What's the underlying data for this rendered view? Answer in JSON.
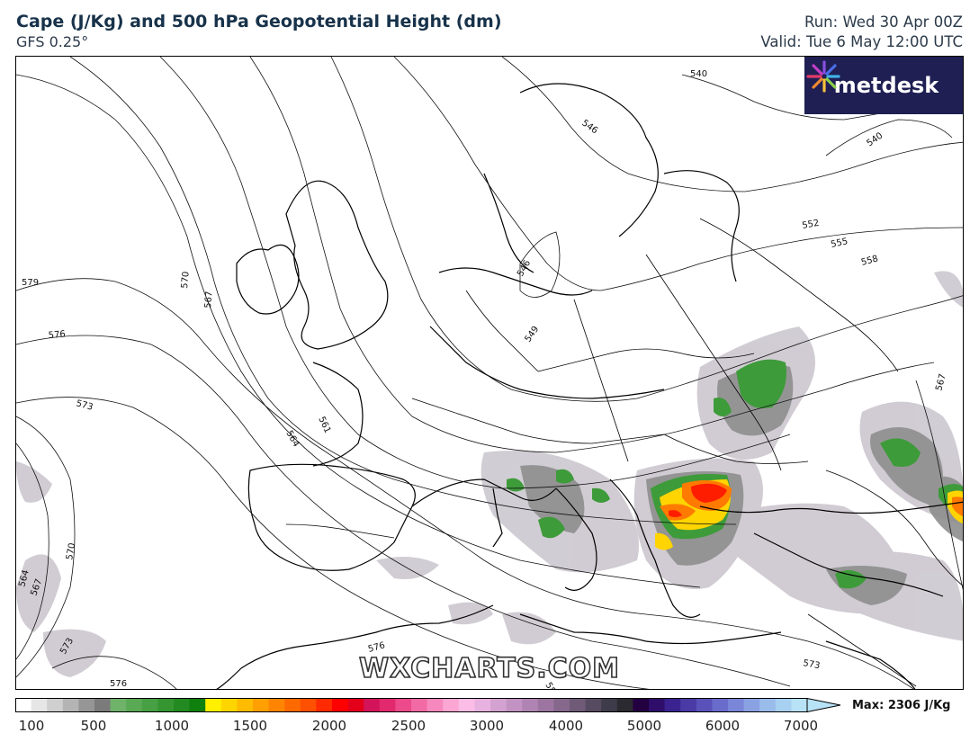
{
  "header": {
    "title": "Cape (J/Kg) and 500 hPa Geopotential Height (dm)",
    "subtitle": "GFS 0.25°",
    "run": "Run: Wed 30 Apr 00Z",
    "valid": "Valid: Tue 6 May 12:00 UTC"
  },
  "logo": {
    "text": "metdesk",
    "icon": "metdesk-burst-icon",
    "background": "#1f1f54"
  },
  "watermark": "WXCHARTS.COM",
  "contour_labels": [
    "540",
    "546",
    "540",
    "552",
    "555",
    "558",
    "546",
    "549",
    "579",
    "570",
    "567",
    "576",
    "573",
    "561",
    "564",
    "567",
    "570",
    "564",
    "567",
    "573",
    "576",
    "576",
    "573",
    "582"
  ],
  "colorbar": {
    "ticks": [
      "100",
      "500",
      "1000",
      "1500",
      "2000",
      "2500",
      "3000",
      "4000",
      "5000",
      "6000",
      "7000"
    ],
    "max_label": "Max: 2306 J/Kg"
  },
  "colors": {
    "cape_colors": [
      "#ffffff",
      "#e6e6e6",
      "#cfcfcf",
      "#b4b4b4",
      "#969696",
      "#7b7b7b",
      "#6fb36a",
      "#5aa955",
      "#47a043",
      "#349531",
      "#228a20",
      "#0f7f0e",
      "#fff000",
      "#ffd500",
      "#ffbb00",
      "#ffa000",
      "#ff8500",
      "#ff6a00",
      "#ff4f00",
      "#ff2a00",
      "#ff0000",
      "#e4001a",
      "#d4145a",
      "#e2296e",
      "#ec4a8a",
      "#f26aa4",
      "#f788bd",
      "#fba6d3",
      "#fbbde6",
      "#e8b2e0",
      "#d4a2d0",
      "#c293c2",
      "#b084b2",
      "#9c76a0",
      "#86688c",
      "#6f5a78",
      "#574b62",
      "#3e3c4a",
      "#2a2a30",
      "#23003f",
      "#2e0e6a",
      "#3a2290",
      "#4a3aa6",
      "#5a52ba",
      "#6a6ccc",
      "#7a86d8",
      "#8aa2e2",
      "#9abcea",
      "#a8d0f0",
      "#b8e2f6"
    ]
  }
}
